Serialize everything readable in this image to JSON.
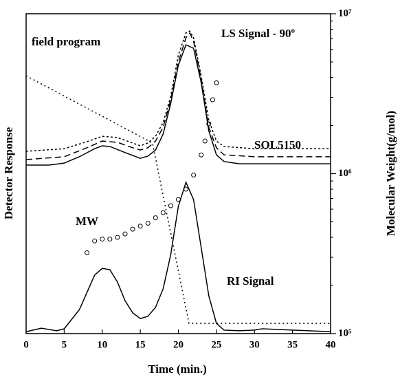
{
  "chart_data": {
    "type": "line",
    "x_label": "Time (min.)",
    "y_label": "Detector Response",
    "y2_label": "Molecular Weight(g/mol)",
    "xlim": [
      0,
      40
    ],
    "xticks": [
      0,
      5,
      10,
      15,
      20,
      25,
      30,
      35,
      40
    ],
    "ylim": [
      0,
      100
    ],
    "y2lim": [
      100000,
      10000000
    ],
    "y2scale": "log",
    "y2ticks": [
      {
        "value": 100000,
        "label": "10⁵"
      },
      {
        "value": 1000000,
        "label": "10⁶"
      },
      {
        "value": 10000000,
        "label": "10⁷"
      }
    ],
    "y2minor_ticks": [
      200000,
      300000,
      400000,
      500000,
      600000,
      700000,
      800000,
      900000,
      2000000,
      3000000,
      4000000,
      5000000,
      6000000,
      7000000,
      8000000,
      9000000
    ],
    "annotations": [
      "field program",
      "LS Signal - 90º",
      "SOL5150",
      "MW",
      "RI Signal"
    ],
    "series": [
      {
        "color": "#000000",
        "dash": "solid",
        "x": [
          0,
          2,
          4,
          5,
          7,
          8,
          9,
          10,
          11,
          12,
          13,
          14,
          15,
          16,
          17,
          18,
          19,
          20,
          21,
          22,
          23,
          24,
          25,
          26,
          28,
          30,
          31,
          35,
          40
        ],
        "values": [
          0.6,
          1.7,
          0.9,
          1.5,
          7.5,
          12.9,
          18.3,
          20.4,
          20.0,
          16.1,
          10.3,
          6.5,
          4.7,
          5.4,
          8.2,
          14.0,
          24.7,
          39.8,
          47.3,
          41.9,
          26.9,
          11.8,
          3.2,
          1.1,
          0.9,
          1.1,
          1.5,
          1.1,
          0.6
        ]
      },
      {
        "color": "#000000",
        "dash": "solid",
        "x": [
          0,
          3,
          5,
          7,
          9,
          10,
          11,
          13,
          15,
          16,
          17,
          18,
          19,
          20,
          21,
          22,
          23,
          24,
          25,
          26,
          28,
          30,
          35,
          40
        ],
        "values": [
          52.7,
          52.7,
          53.3,
          55.3,
          57.8,
          58.7,
          58.5,
          56.6,
          54.8,
          55.5,
          57.4,
          62.4,
          72.0,
          83.9,
          90.3,
          89.2,
          78.5,
          63.4,
          55.9,
          53.8,
          53.1,
          53.1,
          53.1,
          53.1
        ]
      },
      {
        "color": "#000000",
        "dash": "dashed",
        "x": [
          0,
          5,
          8,
          10,
          12,
          14,
          15,
          16,
          17,
          18,
          19,
          20,
          21,
          21.5,
          22,
          23,
          24,
          25,
          26,
          30,
          40
        ],
        "values": [
          54.4,
          55.3,
          58.1,
          60.2,
          59.8,
          58.1,
          57.4,
          58.1,
          60.2,
          64.5,
          73.1,
          84.9,
          92.5,
          94.0,
          91.4,
          79.6,
          64.5,
          58.1,
          55.9,
          55.3,
          55.3
        ]
      },
      {
        "color": "#000000",
        "dash": "dashdot",
        "x": [
          0,
          5,
          8,
          10,
          12,
          14,
          15,
          16,
          17,
          18,
          19,
          20,
          21,
          21.5,
          22,
          23,
          24,
          25,
          26,
          30,
          40
        ],
        "values": [
          57.0,
          57.8,
          60.0,
          61.7,
          61.3,
          59.6,
          58.7,
          59.6,
          61.7,
          66.0,
          74.2,
          87.1,
          94.0,
          94.6,
          92.5,
          80.6,
          66.7,
          60.2,
          58.5,
          57.8,
          57.8
        ]
      },
      {
        "color": "#000000",
        "dash": "dotted",
        "x": [
          0,
          16.6,
          21.4,
          40
        ],
        "values": [
          80.6,
          59.6,
          3.2,
          3.2
        ]
      },
      {
        "color": "#000000",
        "marker": "circle",
        "axis": "y2",
        "x": [
          8,
          9,
          10,
          11,
          12,
          13,
          14,
          15,
          16,
          17,
          18,
          19,
          20,
          21,
          22,
          23,
          23.5,
          24,
          24.5,
          25
        ],
        "values": [
          320000,
          380000,
          390000,
          390000,
          400000,
          420000,
          450000,
          470000,
          490000,
          530000,
          570000,
          630000,
          690000,
          800000,
          980000,
          1310000,
          1600000,
          2050000,
          2900000,
          3700000
        ]
      }
    ]
  }
}
